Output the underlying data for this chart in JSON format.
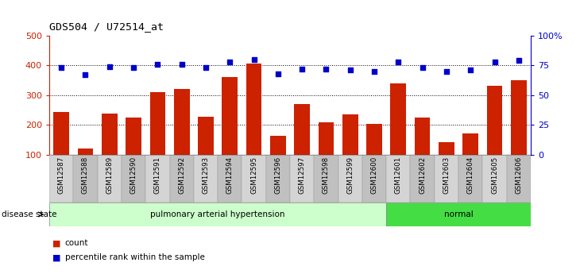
{
  "title": "GDS504 / U72514_at",
  "samples": [
    "GSM12587",
    "GSM12588",
    "GSM12589",
    "GSM12590",
    "GSM12591",
    "GSM12592",
    "GSM12593",
    "GSM12594",
    "GSM12595",
    "GSM12596",
    "GSM12597",
    "GSM12598",
    "GSM12599",
    "GSM12600",
    "GSM12601",
    "GSM12602",
    "GSM12603",
    "GSM12604",
    "GSM12605",
    "GSM12606"
  ],
  "counts": [
    245,
    122,
    238,
    225,
    310,
    320,
    228,
    360,
    405,
    163,
    270,
    210,
    237,
    205,
    340,
    225,
    143,
    172,
    333,
    350
  ],
  "percentiles": [
    73,
    67,
    74,
    73,
    76,
    76,
    73,
    78,
    80,
    68,
    72,
    72,
    71,
    70,
    78,
    73,
    70,
    71,
    78,
    79
  ],
  "bar_color": "#cc2200",
  "dot_color": "#0000cc",
  "ylim_left": [
    100,
    500
  ],
  "ylim_right": [
    0,
    100
  ],
  "yticks_left": [
    100,
    200,
    300,
    400,
    500
  ],
  "yticks_right": [
    0,
    25,
    50,
    75,
    100
  ],
  "ytick_labels_right": [
    "0",
    "25",
    "50",
    "75",
    "100%"
  ],
  "grid_values": [
    200,
    300,
    400
  ],
  "disease_groups": [
    {
      "label": "pulmonary arterial hypertension",
      "start": 0,
      "end": 14,
      "color": "#ccffcc"
    },
    {
      "label": "normal",
      "start": 14,
      "end": 20,
      "color": "#44dd44"
    }
  ],
  "disease_state_label": "disease state",
  "legend_items": [
    {
      "color": "#cc2200",
      "label": "count"
    },
    {
      "color": "#0000cc",
      "label": "percentile rank within the sample"
    }
  ],
  "tick_bg_color": "#c8c8c8",
  "plot_bg_color": "#ffffff"
}
